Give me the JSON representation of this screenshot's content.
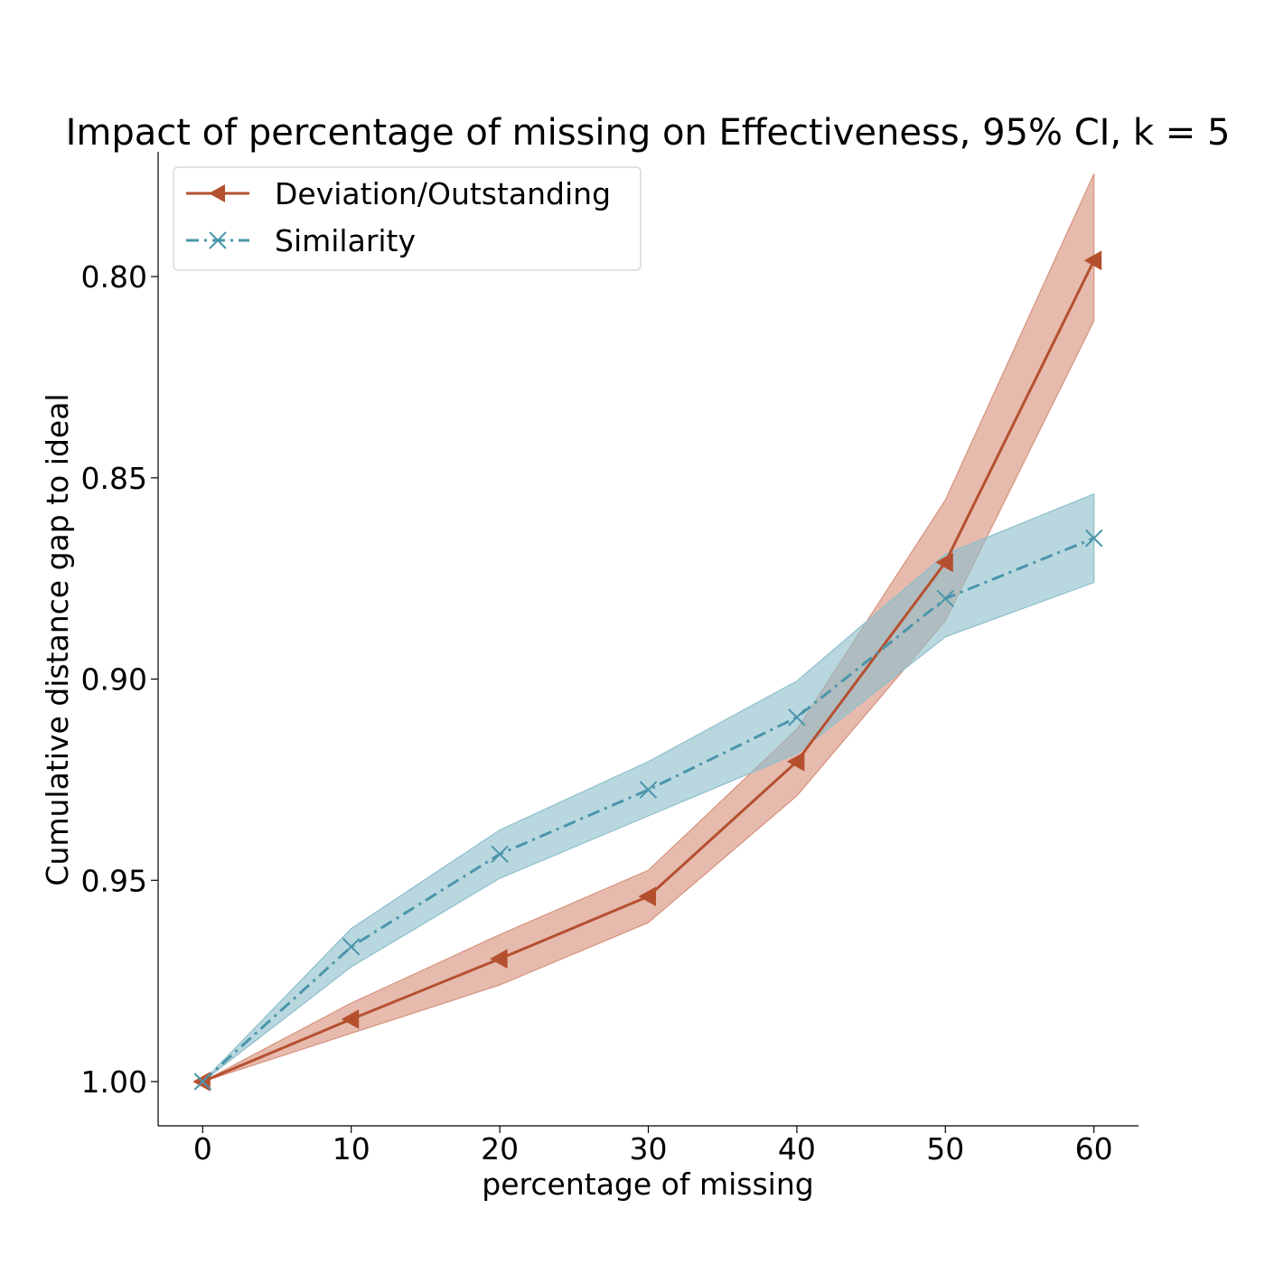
{
  "chart_data": {
    "type": "line",
    "title": "Impact of percentage of missing on Effectiveness, 95% CI, k = 5",
    "xlabel": "percentage of missing",
    "ylabel": "Cumulative distance gap to ideal",
    "x": [
      0,
      10,
      20,
      30,
      40,
      50,
      60
    ],
    "x_ticks": [
      "0",
      "10",
      "20",
      "30",
      "40",
      "50",
      "60"
    ],
    "xlim": [
      -3,
      63
    ],
    "y_ticks": [
      "1.00",
      "0.95",
      "0.90",
      "0.85",
      "0.80"
    ],
    "y_tick_values": [
      1.0,
      0.95,
      0.9,
      0.85,
      0.8
    ],
    "ylim": [
      1.011,
      0.769
    ],
    "y_inverted": true,
    "grid": false,
    "legend_position": "top-left",
    "series": [
      {
        "name": "Deviation/Outstanding",
        "color": "#b5502f",
        "band_color": "#d7927d",
        "line_style": "solid",
        "marker": "triangle-left",
        "values": [
          1.0,
          0.9845,
          0.9695,
          0.954,
          0.9205,
          0.871,
          0.796
        ],
        "ci_lower": [
          1.0,
          0.9805,
          0.9635,
          0.9475,
          0.9125,
          0.8555,
          0.7745
        ],
        "ci_upper": [
          1.0,
          0.988,
          0.976,
          0.9605,
          0.929,
          0.8855,
          0.811
        ]
      },
      {
        "name": "Similarity",
        "color": "#4a96ab",
        "band_color": "#8ebfcc",
        "line_style": "dashdot",
        "marker": "x",
        "values": [
          1.0,
          0.9665,
          0.9435,
          0.9275,
          0.9095,
          0.88,
          0.865
        ],
        "ci_lower": [
          1.0,
          0.962,
          0.9375,
          0.9205,
          0.9005,
          0.869,
          0.854
        ],
        "ci_upper": [
          1.0,
          0.9715,
          0.9495,
          0.934,
          0.9185,
          0.8895,
          0.876
        ]
      }
    ]
  }
}
